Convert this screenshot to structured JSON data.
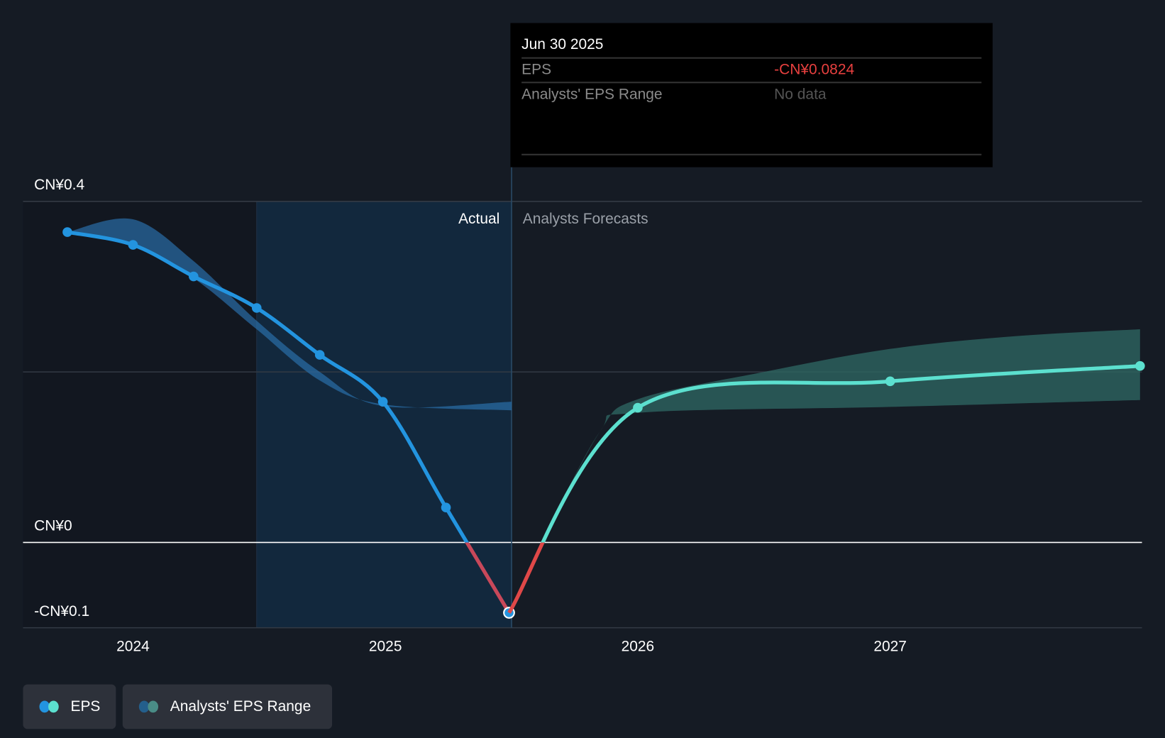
{
  "tooltip": {
    "date": "Jun 30 2025",
    "rows": [
      {
        "label": "EPS",
        "value": "-CN¥0.0824"
      },
      {
        "label": "Analysts' EPS Range",
        "value": "No data"
      }
    ]
  },
  "colors": {
    "background": "#151b24",
    "eps": "#2394df",
    "forecast": "#5ce0cf",
    "negative": "#e04848",
    "range_hist": "#2a6ea8",
    "range_forecast": "#2f6a64"
  },
  "chart_data": {
    "type": "line",
    "xlabel": "",
    "ylabel": "",
    "x_ticks": [
      {
        "value": 2024,
        "label": "2024"
      },
      {
        "value": 2025,
        "label": "2025"
      },
      {
        "value": 2026,
        "label": "2026"
      },
      {
        "value": 2027,
        "label": "2027"
      }
    ],
    "y_ticks": [
      {
        "value": 0.4,
        "label": "CN¥0.4"
      },
      {
        "value": 0,
        "label": "CN¥0"
      },
      {
        "value": -0.1,
        "label": "-CN¥0.1"
      }
    ],
    "ylim": [
      -0.1,
      0.4
    ],
    "xlim": [
      2023.6,
      2027.99
    ],
    "sections": {
      "actual": "Actual",
      "forecast": "Analysts Forecasts"
    },
    "divider_x": 2025.5,
    "series": [
      {
        "name": "EPS",
        "kind": "actual",
        "points": [
          [
            2023.74,
            0.364
          ],
          [
            2024.0,
            0.349
          ],
          [
            2024.24,
            0.312
          ],
          [
            2024.49,
            0.275
          ],
          [
            2024.74,
            0.22
          ],
          [
            2024.99,
            0.165
          ],
          [
            2025.24,
            0.041
          ],
          [
            2025.49,
            -0.0824
          ]
        ]
      },
      {
        "name": "EPS Forecast",
        "kind": "forecast",
        "points": [
          [
            2025.49,
            -0.0824
          ],
          [
            2026.0,
            0.158
          ],
          [
            2027.0,
            0.189
          ],
          [
            2027.99,
            0.207
          ]
        ]
      }
    ],
    "ranges": [
      {
        "name": "Analysts' EPS Range (historical)",
        "upper": [
          [
            2023.74,
            0.364
          ],
          [
            2024.0,
            0.379
          ],
          [
            2024.24,
            0.33
          ],
          [
            2024.49,
            0.26
          ],
          [
            2024.74,
            0.2
          ],
          [
            2024.99,
            0.16
          ],
          [
            2025.5,
            0.165
          ]
        ],
        "lower": [
          [
            2025.5,
            0.155
          ],
          [
            2024.99,
            0.162
          ],
          [
            2024.74,
            0.19
          ],
          [
            2024.49,
            0.25
          ],
          [
            2024.24,
            0.31
          ],
          [
            2024.0,
            0.349
          ],
          [
            2023.74,
            0.364
          ]
        ]
      },
      {
        "name": "Analysts' EPS Range (forecast)",
        "upper": [
          [
            2025.62,
            0.0
          ],
          [
            2025.85,
            0.13
          ],
          [
            2026.0,
            0.168
          ],
          [
            2026.5,
            0.2
          ],
          [
            2027.0,
            0.227
          ],
          [
            2027.5,
            0.242
          ],
          [
            2027.99,
            0.25
          ]
        ],
        "lower": [
          [
            2027.99,
            0.167
          ],
          [
            2027.0,
            0.159
          ],
          [
            2026.0,
            0.152
          ],
          [
            2025.85,
            0.13
          ],
          [
            2025.62,
            0.0
          ]
        ]
      }
    ],
    "legend": [
      {
        "label": "EPS"
      },
      {
        "label": "Analysts' EPS Range"
      }
    ],
    "legend_position": "bottom-left",
    "grid": true
  }
}
